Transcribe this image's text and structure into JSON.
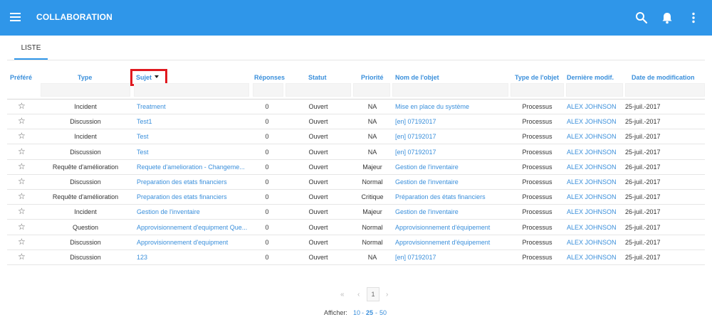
{
  "app": {
    "title": "COLLABORATION"
  },
  "tabs": [
    {
      "label": "LISTE"
    }
  ],
  "columns": {
    "prefere": "Préféré",
    "type": "Type",
    "sujet": "Sujet",
    "reponses": "Réponses",
    "statut": "Statut",
    "priorite": "Priorité",
    "nom_objet": "Nom de l'objet",
    "type_objet": "Type de l'objet",
    "derniere_modif": "Dernière modif.",
    "date_modif": "Date de modification"
  },
  "icons": {
    "menu": "menu-icon",
    "search": "search-icon",
    "notifications": "bell-icon",
    "more": "more-vert-icon",
    "favorite": "star-outline-icon"
  },
  "colors": {
    "appbar": "#2f96e9",
    "link": "#3a8fdb",
    "highlight": "#e0191f"
  },
  "favorite_glyph": "☆",
  "rows": [
    {
      "type": "Incident",
      "sujet": "Treatment",
      "reponses": "0",
      "statut": "Ouvert",
      "priorite": "NA",
      "nom_objet": "Mise en place du système",
      "type_objet": "Processus",
      "derniere_modif": "ALEX JOHNSON",
      "date_modif": "25-juil.-2017"
    },
    {
      "type": "Discussion",
      "sujet": "Test1",
      "reponses": "0",
      "statut": "Ouvert",
      "priorite": "NA",
      "nom_objet": "[en] 07192017",
      "type_objet": "Processus",
      "derniere_modif": "ALEX JOHNSON",
      "date_modif": "25-juil.-2017"
    },
    {
      "type": "Incident",
      "sujet": "Test",
      "reponses": "0",
      "statut": "Ouvert",
      "priorite": "NA",
      "nom_objet": "[en] 07192017",
      "type_objet": "Processus",
      "derniere_modif": "ALEX JOHNSON",
      "date_modif": "25-juil.-2017"
    },
    {
      "type": "Discussion",
      "sujet": "Test",
      "reponses": "0",
      "statut": "Ouvert",
      "priorite": "NA",
      "nom_objet": "[en] 07192017",
      "type_objet": "Processus",
      "derniere_modif": "ALEX JOHNSON",
      "date_modif": "25-juil.-2017"
    },
    {
      "type": "Requête d'amélioration",
      "sujet": "Requete d'amelioration - Changeme...",
      "reponses": "0",
      "statut": "Ouvert",
      "priorite": "Majeur",
      "nom_objet": "Gestion de l'inventaire",
      "type_objet": "Processus",
      "derniere_modif": "ALEX JOHNSON",
      "date_modif": "26-juil.-2017"
    },
    {
      "type": "Discussion",
      "sujet": "Preparation des etats financiers",
      "reponses": "0",
      "statut": "Ouvert",
      "priorite": "Normal",
      "nom_objet": "Gestion de l'inventaire",
      "type_objet": "Processus",
      "derniere_modif": "ALEX JOHNSON",
      "date_modif": "26-juil.-2017"
    },
    {
      "type": "Requête d'amélioration",
      "sujet": "Preparation des etats financiers",
      "reponses": "0",
      "statut": "Ouvert",
      "priorite": "Critique",
      "nom_objet": "Préparation des états financiers",
      "type_objet": "Processus",
      "derniere_modif": "ALEX JOHNSON",
      "date_modif": "25-juil.-2017"
    },
    {
      "type": "Incident",
      "sujet": "Gestion de l'inventaire",
      "reponses": "0",
      "statut": "Ouvert",
      "priorite": "Majeur",
      "nom_objet": "Gestion de l'inventaire",
      "type_objet": "Processus",
      "derniere_modif": "ALEX JOHNSON",
      "date_modif": "26-juil.-2017"
    },
    {
      "type": "Question",
      "sujet": "Approvisionnement d'equipment Que...",
      "reponses": "0",
      "statut": "Ouvert",
      "priorite": "Normal",
      "nom_objet": "Approvisionnement d'équipement",
      "type_objet": "Processus",
      "derniere_modif": "ALEX JOHNSON",
      "date_modif": "25-juil.-2017"
    },
    {
      "type": "Discussion",
      "sujet": "Approvisionnement d'equipment",
      "reponses": "0",
      "statut": "Ouvert",
      "priorite": "Normal",
      "nom_objet": "Approvisionnement d'équipement",
      "type_objet": "Processus",
      "derniere_modif": "ALEX JOHNSON",
      "date_modif": "25-juil.-2017"
    },
    {
      "type": "Discussion",
      "sujet": "123",
      "reponses": "0",
      "statut": "Ouvert",
      "priorite": "NA",
      "nom_objet": "[en] 07192017",
      "type_objet": "Processus",
      "derniere_modif": "ALEX JOHNSON",
      "date_modif": "25-juil.-2017"
    }
  ],
  "pagination": {
    "first": "«",
    "prev": "‹",
    "current_page": "1",
    "next": "›",
    "show_label": "Afficher:",
    "page_sizes": [
      "10",
      "25",
      "50"
    ],
    "separator": "-",
    "active_page_size": "25"
  }
}
